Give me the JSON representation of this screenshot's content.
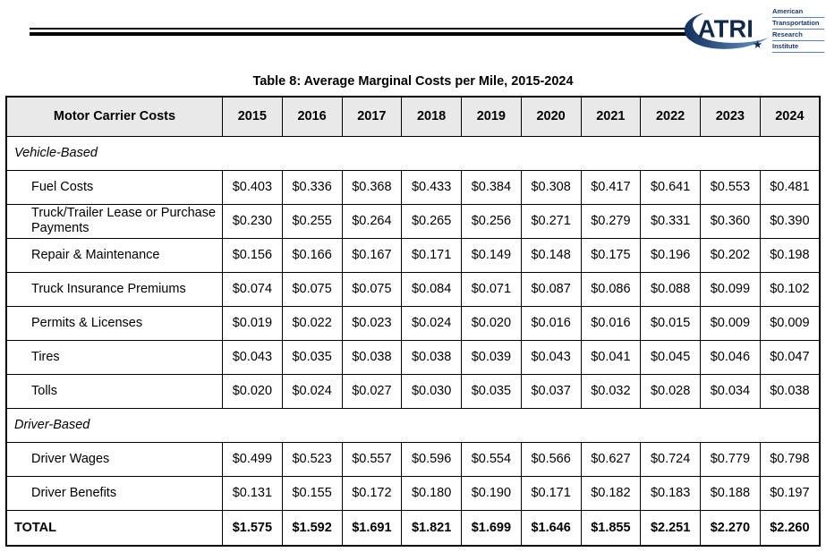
{
  "logo": {
    "acronym": "ATRI",
    "org_lines": [
      "American",
      "Transportation",
      "Research",
      "Institute"
    ],
    "navy": "#13294b",
    "blue": "#2b5ea7"
  },
  "title": "Table 8: Average Marginal Costs per Mile, 2015-2024",
  "table": {
    "header": {
      "label": "Motor Carrier Costs",
      "years": [
        "2015",
        "2016",
        "2017",
        "2018",
        "2019",
        "2020",
        "2021",
        "2022",
        "2023",
        "2024"
      ]
    },
    "sections": [
      {
        "name": "Vehicle-Based",
        "rows": [
          {
            "label": "Fuel Costs",
            "values": [
              "$0.403",
              "$0.336",
              "$0.368",
              "$0.433",
              "$0.384",
              "$0.308",
              "$0.417",
              "$0.641",
              "$0.553",
              "$0.481"
            ]
          },
          {
            "label": "Truck/Trailer Lease or Purchase Payments",
            "values": [
              "$0.230",
              "$0.255",
              "$0.264",
              "$0.265",
              "$0.256",
              "$0.271",
              "$0.279",
              "$0.331",
              "$0.360",
              "$0.390"
            ]
          },
          {
            "label": "Repair & Maintenance",
            "values": [
              "$0.156",
              "$0.166",
              "$0.167",
              "$0.171",
              "$0.149",
              "$0.148",
              "$0.175",
              "$0.196",
              "$0.202",
              "$0.198"
            ]
          },
          {
            "label": "Truck Insurance Premiums",
            "values": [
              "$0.074",
              "$0.075",
              "$0.075",
              "$0.084",
              "$0.071",
              "$0.087",
              "$0.086",
              "$0.088",
              "$0.099",
              "$0.102"
            ]
          },
          {
            "label": "Permits & Licenses",
            "values": [
              "$0.019",
              "$0.022",
              "$0.023",
              "$0.024",
              "$0.020",
              "$0.016",
              "$0.016",
              "$0.015",
              "$0.009",
              "$0.009"
            ]
          },
          {
            "label": "Tires",
            "values": [
              "$0.043",
              "$0.035",
              "$0.038",
              "$0.038",
              "$0.039",
              "$0.043",
              "$0.041",
              "$0.045",
              "$0.046",
              "$0.047"
            ]
          },
          {
            "label": "Tolls",
            "values": [
              "$0.020",
              "$0.024",
              "$0.027",
              "$0.030",
              "$0.035",
              "$0.037",
              "$0.032",
              "$0.028",
              "$0.034",
              "$0.038"
            ]
          }
        ]
      },
      {
        "name": "Driver-Based",
        "rows": [
          {
            "label": "Driver Wages",
            "values": [
              "$0.499",
              "$0.523",
              "$0.557",
              "$0.596",
              "$0.554",
              "$0.566",
              "$0.627",
              "$0.724",
              "$0.779",
              "$0.798"
            ]
          },
          {
            "label": "Driver Benefits",
            "values": [
              "$0.131",
              "$0.155",
              "$0.172",
              "$0.180",
              "$0.190",
              "$0.171",
              "$0.182",
              "$0.183",
              "$0.188",
              "$0.197"
            ]
          }
        ]
      }
    ],
    "total": {
      "label": "TOTAL",
      "values": [
        "$1.575",
        "$1.592",
        "$1.691",
        "$1.821",
        "$1.699",
        "$1.646",
        "$1.855",
        "$2.251",
        "$2.270",
        "$2.260"
      ]
    }
  }
}
